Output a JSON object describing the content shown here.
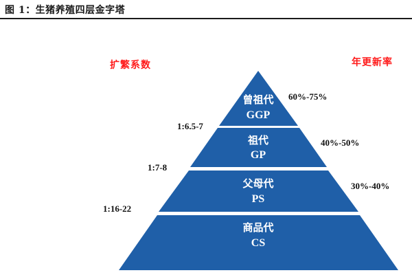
{
  "figure": {
    "title": "图 1：生猪养殖四层金字塔"
  },
  "headings": {
    "left": "扩繁系数",
    "right": "年更新率"
  },
  "pyramid": {
    "fill_color": "#1f5fa8",
    "gap_color": "#ffffff",
    "layers": [
      {
        "name": "曾祖代",
        "code": "GGP",
        "renewal_rate": "60%-75%"
      },
      {
        "name": "祖代",
        "code": "GP",
        "renewal_rate": "40%-50%"
      },
      {
        "name": "父母代",
        "code": "PS",
        "renewal_rate": "30%-40%"
      },
      {
        "name": "商品代",
        "code": "CS"
      }
    ],
    "expansion_ratios": [
      "1:6.5-7",
      "1:7-8",
      "1:16-22"
    ]
  }
}
